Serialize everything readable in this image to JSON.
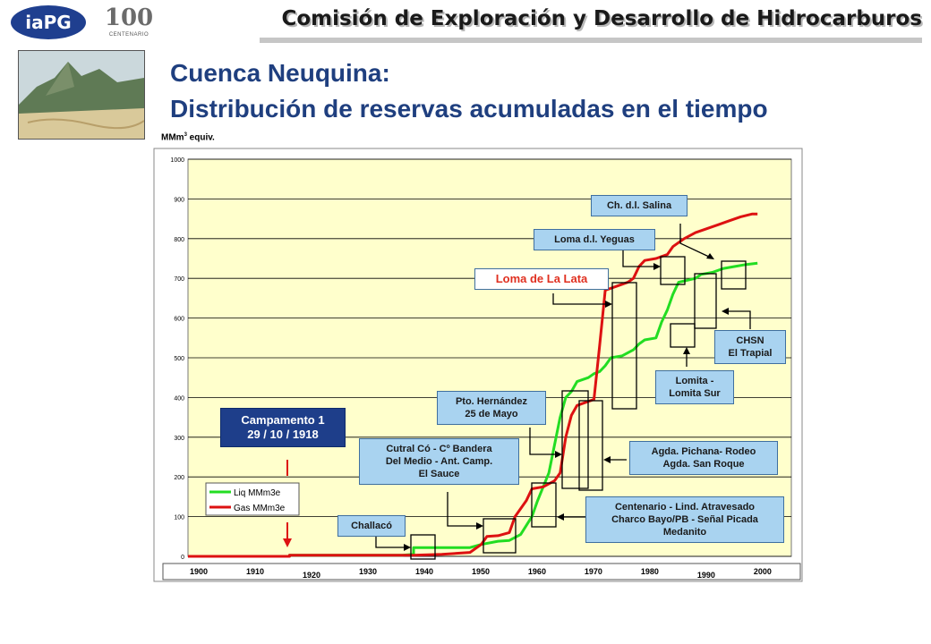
{
  "header": {
    "logo_text": "iaPG",
    "centenario_mark": "100",
    "centenario_label": "CENTENARIO",
    "title": "Comisión de Exploración y Desarrollo de Hidrocarburos"
  },
  "slide": {
    "title_line1": "Cuenca Neuquina:",
    "title_line2": "Distribución de reservas acumuladas en el tiempo",
    "unit": "MMm",
    "unit_sup": "3",
    "unit_rest": " equiv."
  },
  "chart_data": {
    "type": "line",
    "title": "",
    "ylabel": "MMm3 equiv.",
    "ylim": [
      0,
      1000
    ],
    "yticks": [
      0,
      100,
      200,
      300,
      400,
      500,
      600,
      700,
      800,
      900,
      1000
    ],
    "xlim": [
      1900,
      2007
    ],
    "xtick_labels": [
      "1900",
      "1910",
      "1920",
      "1930",
      "1940",
      "1950",
      "1960",
      "1970",
      "1980",
      "1990",
      "2000"
    ],
    "grid": "horizontal",
    "background": "#ffffcc",
    "legend_placement": "left",
    "series": [
      {
        "name": "Liq MMm3e",
        "color": "#22dd22",
        "points": [
          [
            1900,
            0
          ],
          [
            1918,
            0
          ],
          [
            1918,
            3
          ],
          [
            1938,
            3
          ],
          [
            1940,
            5
          ],
          [
            1940,
            22
          ],
          [
            1950,
            22
          ],
          [
            1952,
            30
          ],
          [
            1955,
            38
          ],
          [
            1957,
            40
          ],
          [
            1959,
            55
          ],
          [
            1961,
            100
          ],
          [
            1962,
            140
          ],
          [
            1964,
            210
          ],
          [
            1965,
            280
          ],
          [
            1966,
            350
          ],
          [
            1967,
            400
          ],
          [
            1968,
            415
          ],
          [
            1969,
            440
          ],
          [
            1971,
            450
          ],
          [
            1972,
            460
          ],
          [
            1973,
            465
          ],
          [
            1974,
            480
          ],
          [
            1975,
            500
          ],
          [
            1977,
            505
          ],
          [
            1979,
            520
          ],
          [
            1980,
            535
          ],
          [
            1981,
            545
          ],
          [
            1983,
            550
          ],
          [
            1984,
            590
          ],
          [
            1985,
            620
          ],
          [
            1986,
            660
          ],
          [
            1987,
            690
          ],
          [
            1990,
            700
          ],
          [
            1991,
            710
          ],
          [
            1993,
            715
          ],
          [
            1995,
            725
          ],
          [
            1997,
            730
          ],
          [
            1999,
            735
          ],
          [
            2001,
            738
          ]
        ]
      },
      {
        "name": "Gas MMm3e",
        "color": "#dd1111",
        "points": [
          [
            1900,
            0
          ],
          [
            1918,
            0
          ],
          [
            1918,
            3
          ],
          [
            1940,
            3
          ],
          [
            1945,
            5
          ],
          [
            1950,
            10
          ],
          [
            1952,
            30
          ],
          [
            1953,
            50
          ],
          [
            1955,
            52
          ],
          [
            1957,
            60
          ],
          [
            1958,
            100
          ],
          [
            1960,
            140
          ],
          [
            1961,
            170
          ],
          [
            1963,
            175
          ],
          [
            1965,
            190
          ],
          [
            1966,
            210
          ],
          [
            1967,
            300
          ],
          [
            1968,
            355
          ],
          [
            1969,
            380
          ],
          [
            1971,
            390
          ],
          [
            1972,
            395
          ],
          [
            1973,
            530
          ],
          [
            1974,
            670
          ],
          [
            1976,
            680
          ],
          [
            1978,
            690
          ],
          [
            1979,
            700
          ],
          [
            1980,
            730
          ],
          [
            1981,
            745
          ],
          [
            1983,
            750
          ],
          [
            1985,
            760
          ],
          [
            1986,
            780
          ],
          [
            1988,
            800
          ],
          [
            1990,
            815
          ],
          [
            1992,
            825
          ],
          [
            1994,
            835
          ],
          [
            1996,
            845
          ],
          [
            1998,
            855
          ],
          [
            2000,
            862
          ],
          [
            2001,
            862
          ]
        ]
      }
    ],
    "annotations": [
      "Ch. d.l. Salina",
      "Loma d.l. Yeguas",
      "Loma de La Lata",
      "CHSN\nEl Trapial",
      "Lomita -\nLomita Sur",
      "Pto. Hernández\n25 de Mayo",
      "Campamento 1\n29 / 10 / 1918",
      "Agda. Pichana- Rodeo\nAgda. San Roque",
      "Cutral Có - Cº Bandera\nDel Medio - Ant. Camp.\nEl Sauce",
      "Centenario - Lind. Atravesado\nCharco Bayo/PB - Señal Picada\nMedanito",
      "Challacó"
    ]
  }
}
